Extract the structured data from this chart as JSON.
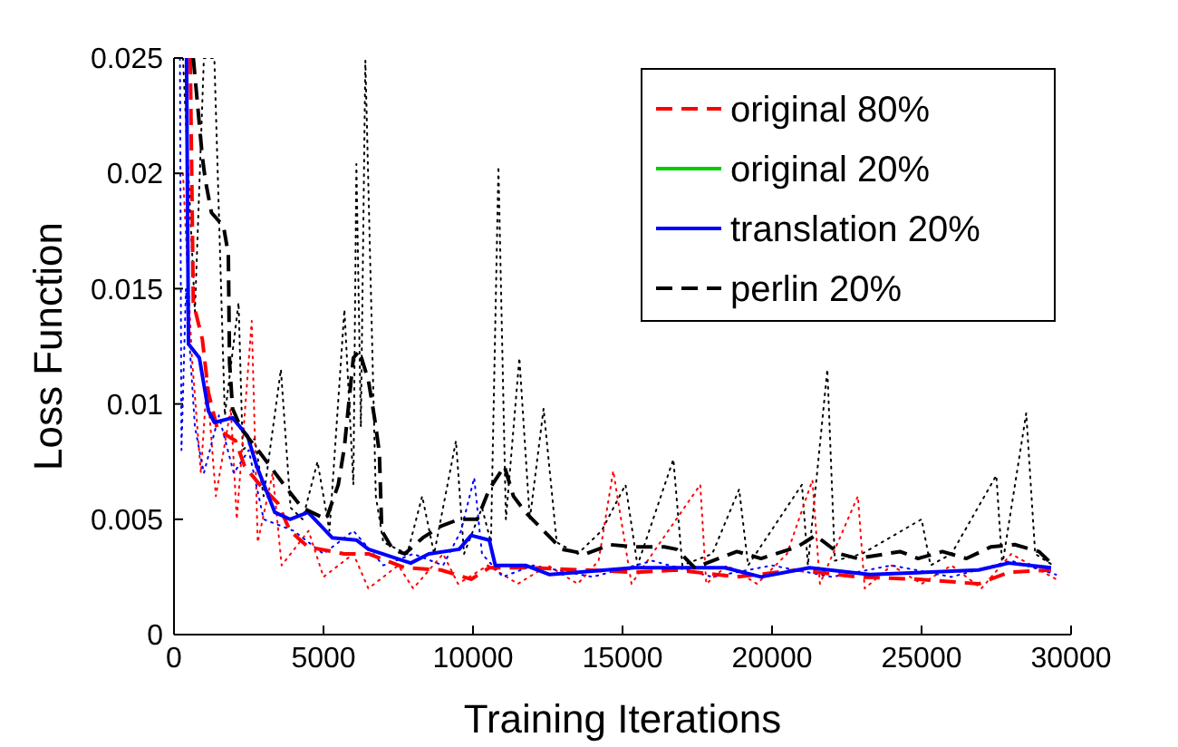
{
  "chart_data": {
    "type": "line",
    "xlabel": "Training Iterations",
    "ylabel": "Loss Function",
    "xlim": [
      0,
      30000
    ],
    "xticks": [
      0,
      5000,
      10000,
      15000,
      20000,
      25000,
      30000
    ],
    "ylim": [
      0,
      0.025
    ],
    "yticks": [
      0,
      0.005,
      0.01,
      0.015,
      0.02,
      0.025
    ],
    "grid": false,
    "legend": "top right",
    "marker": "none",
    "series": [
      {
        "color": "#000000",
        "line_style": "dotted",
        "x": [
          300,
          700,
          1000,
          1350,
          1700,
          2160,
          2300,
          2700,
          3000,
          3575,
          3900,
          4300,
          4800,
          5200,
          5700,
          6000,
          6100,
          6250,
          6400,
          6750,
          7000,
          7800,
          8300,
          8700,
          9430,
          9700,
          10300,
          10600,
          10850,
          11100,
          11550,
          11900,
          12360,
          12800,
          13500,
          14300,
          15100,
          15500,
          16700,
          17000,
          18000,
          18900,
          19200,
          21000,
          21200,
          21850,
          22100,
          23000,
          25000,
          25300,
          26000,
          27500,
          27700,
          28500,
          28800,
          29400
        ],
        "values": [
          0.025,
          0.014,
          0.025,
          0.025,
          0.0095,
          0.0144,
          0.008,
          0.0085,
          0.006,
          0.0115,
          0.0055,
          0.005,
          0.0075,
          0.0045,
          0.0141,
          0.0065,
          0.0204,
          0.009,
          0.0249,
          0.006,
          0.004,
          0.0035,
          0.006,
          0.0035,
          0.0084,
          0.0035,
          0.0055,
          0.004,
          0.0203,
          0.005,
          0.012,
          0.005,
          0.0098,
          0.004,
          0.0035,
          0.0045,
          0.0065,
          0.003,
          0.0076,
          0.003,
          0.0035,
          0.0063,
          0.003,
          0.0065,
          0.003,
          0.0115,
          0.0032,
          0.0035,
          0.005,
          0.003,
          0.0035,
          0.0069,
          0.003,
          0.0096,
          0.0035,
          0.003
        ]
      },
      {
        "color": "#ff0000",
        "line_style": "dotted",
        "x": [
          300,
          600,
          900,
          1100,
          1400,
          1900,
          2100,
          2600,
          2800,
          3300,
          3600,
          4500,
          5000,
          6000,
          6500,
          7500,
          8000,
          9000,
          9500,
          10500,
          11500,
          12500,
          13500,
          14200,
          14690,
          15300,
          17600,
          17800,
          18500,
          19500,
          20500,
          21350,
          21600,
          22870,
          23100,
          24000,
          25000,
          26000,
          27000,
          28000,
          29500
        ],
        "values": [
          0.02,
          0.012,
          0.007,
          0.011,
          0.006,
          0.0098,
          0.005,
          0.0136,
          0.004,
          0.007,
          0.003,
          0.0045,
          0.0025,
          0.0035,
          0.002,
          0.003,
          0.002,
          0.0035,
          0.0022,
          0.003,
          0.0022,
          0.003,
          0.0022,
          0.0032,
          0.0071,
          0.0022,
          0.0065,
          0.0022,
          0.003,
          0.0022,
          0.0035,
          0.0067,
          0.0022,
          0.006,
          0.002,
          0.003,
          0.0022,
          0.003,
          0.002,
          0.0035,
          0.0024
        ]
      },
      {
        "color": "#0000ff",
        "line_style": "dotted",
        "x": [
          200,
          250,
          400,
          700,
          1000,
          1500,
          2000,
          2500,
          3000,
          4000,
          5000,
          6000,
          7000,
          8000,
          9000,
          9600,
          10040,
          10300,
          11000,
          12000,
          14000,
          16000,
          18000,
          20000,
          22000,
          24000,
          26000,
          28000,
          29500
        ],
        "values": [
          0.025,
          0.008,
          0.015,
          0.009,
          0.007,
          0.0095,
          0.007,
          0.008,
          0.005,
          0.0045,
          0.0035,
          0.0045,
          0.003,
          0.0035,
          0.003,
          0.0045,
          0.0068,
          0.0035,
          0.0025,
          0.003,
          0.0025,
          0.0032,
          0.0025,
          0.003,
          0.0025,
          0.003,
          0.0025,
          0.0032,
          0.0026
        ]
      },
      {
        "name": "original 80%",
        "color": "#ff0000",
        "line_style": "dashed",
        "x": [
          545,
          646,
          949,
          1151,
          1454,
          2060,
          2363,
          2868,
          3474,
          3878,
          4484,
          5696,
          6504,
          7716,
          8928,
          9938,
          10544,
          11756,
          13776,
          15392,
          16806,
          18826,
          20846,
          22866,
          24886,
          26906,
          27916,
          29330
        ],
        "values": [
          0.025,
          0.0144,
          0.0128,
          0.0105,
          0.0089,
          0.0084,
          0.0073,
          0.0065,
          0.0057,
          0.0045,
          0.0038,
          0.0035,
          0.0035,
          0.0029,
          0.0028,
          0.0024,
          0.0029,
          0.0029,
          0.0028,
          0.0027,
          0.0028,
          0.0025,
          0.0028,
          0.0025,
          0.0024,
          0.0022,
          0.0027,
          0.0028
        ]
      },
      {
        "name": "original 20%",
        "color": "#00cc00",
        "line_style": "solid"
      },
      {
        "name": "translation 20%",
        "color": "#0000ff",
        "line_style": "solid",
        "x": [
          420,
          485,
          848,
          1151,
          1353,
          1959,
          2464,
          2767,
          3373,
          3878,
          4484,
          5292,
          6100,
          6504,
          7918,
          8524,
          9535,
          9938,
          10544,
          10746,
          11756,
          12564,
          15392,
          18422,
          19634,
          21252,
          23270,
          26906,
          27916,
          29330
        ],
        "values": [
          0.025,
          0.0126,
          0.012,
          0.0097,
          0.0092,
          0.0094,
          0.0086,
          0.0073,
          0.0053,
          0.005,
          0.0053,
          0.0042,
          0.0041,
          0.0037,
          0.0031,
          0.0035,
          0.0037,
          0.0043,
          0.0041,
          0.003,
          0.003,
          0.0026,
          0.0029,
          0.0029,
          0.0025,
          0.0029,
          0.0026,
          0.0028,
          0.0031,
          0.0029
        ]
      },
      {
        "name": "perlin 20%",
        "color": "#000000",
        "line_style": "dashed",
        "x": [
          646,
          949,
          1050,
          1252,
          1656,
          1818,
          1858,
          1959,
          2262,
          2868,
          3676,
          4282,
          5090,
          5494,
          5696,
          5999,
          6201,
          6504,
          6706,
          6868,
          6949,
          7312,
          7716,
          8322,
          8928,
          9535,
          10140,
          10544,
          11049,
          11352,
          11756,
          12362,
          12968,
          13776,
          14584,
          15392,
          16402,
          16806,
          17412,
          18826,
          19634,
          20846,
          21452,
          22260,
          22866,
          24280,
          24886,
          25694,
          26502,
          27310,
          28118,
          28926,
          29330
        ],
        "values": [
          0.025,
          0.0207,
          0.0197,
          0.0183,
          0.0177,
          0.0165,
          0.0118,
          0.0098,
          0.0089,
          0.0079,
          0.0065,
          0.0055,
          0.005,
          0.0065,
          0.0081,
          0.012,
          0.0123,
          0.011,
          0.0094,
          0.0079,
          0.0045,
          0.0037,
          0.0035,
          0.0042,
          0.0047,
          0.005,
          0.005,
          0.0063,
          0.0073,
          0.006,
          0.0053,
          0.0045,
          0.0037,
          0.0035,
          0.0039,
          0.0038,
          0.0038,
          0.0037,
          0.0029,
          0.0036,
          0.0033,
          0.0038,
          0.0043,
          0.0035,
          0.0033,
          0.0036,
          0.0033,
          0.0036,
          0.0033,
          0.0038,
          0.0039,
          0.0036,
          0.0031
        ]
      }
    ]
  }
}
